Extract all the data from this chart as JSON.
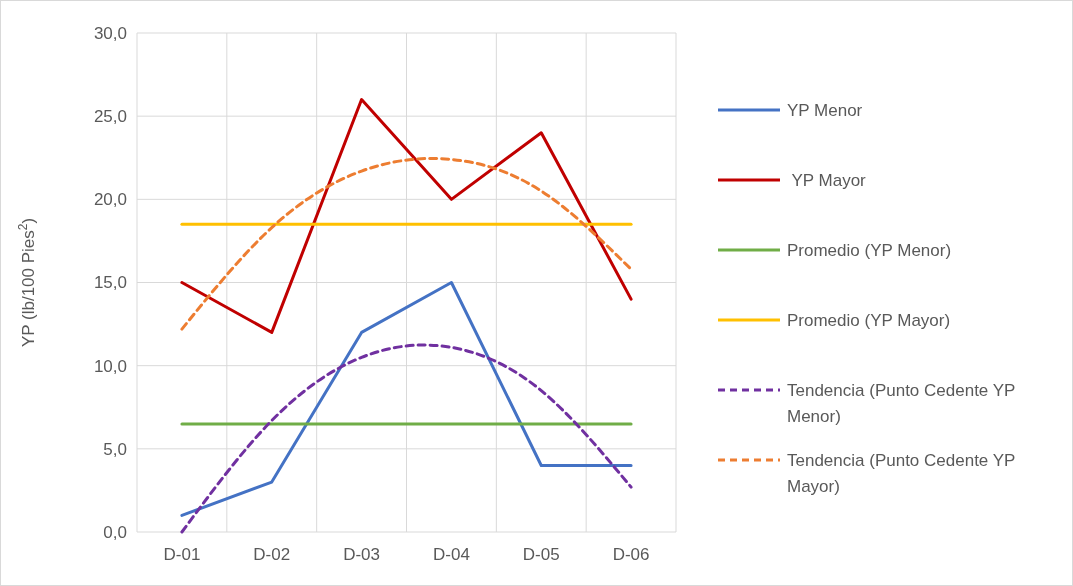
{
  "chart_data": {
    "type": "line",
    "ylabel": "YP (lb/100 Pies$^{2}$)",
    "categories": [
      "D-01",
      "D-02",
      "D-03",
      "D-04",
      "D-05",
      "D-06"
    ],
    "series": [
      {
        "name": "YP Menor",
        "color": "#4472c4",
        "values": [
          1,
          3,
          12,
          15,
          4,
          4
        ]
      },
      {
        "name": " YP Mayor",
        "color": "#c00000",
        "values": [
          15,
          12,
          26,
          20,
          24,
          14
        ]
      },
      {
        "name": "Promedio (YP Menor)",
        "color": "#70ad47",
        "values": [
          6.5,
          6.5,
          6.5,
          6.5,
          6.5,
          6.5
        ]
      },
      {
        "name": "Promedio (YP Mayor)",
        "color": "#ffc000",
        "values": [
          18.5,
          18.5,
          18.5,
          18.5,
          18.5,
          18.5
        ]
      },
      {
        "name": "Tendencia (Punto Cedente YP Menor)",
        "color": "#7030a0",
        "line_style": "dashed",
        "values": [
          0,
          6.7,
          10.5,
          11.1,
          8.5,
          2.7
        ]
      },
      {
        "name": "Tendencia (Punto Cedente YP Mayor)",
        "color": "#ed7d31",
        "line_style": "dashed",
        "values": [
          12.2,
          18.3,
          21.7,
          22.4,
          20.5,
          15.8
        ]
      }
    ],
    "ylim": [
      0,
      30
    ],
    "yticks": [
      {
        "value": 0,
        "label": "0,0"
      },
      {
        "value": 5,
        "label": "5,0"
      },
      {
        "value": 10,
        "label": "10,0"
      },
      {
        "value": 15,
        "label": "15,0"
      },
      {
        "value": 20,
        "label": "20,0"
      },
      {
        "value": 25,
        "label": "25,0"
      },
      {
        "value": 30,
        "label": "30,0"
      }
    ],
    "grid": true,
    "legend": "right",
    "line_style": "solid"
  }
}
